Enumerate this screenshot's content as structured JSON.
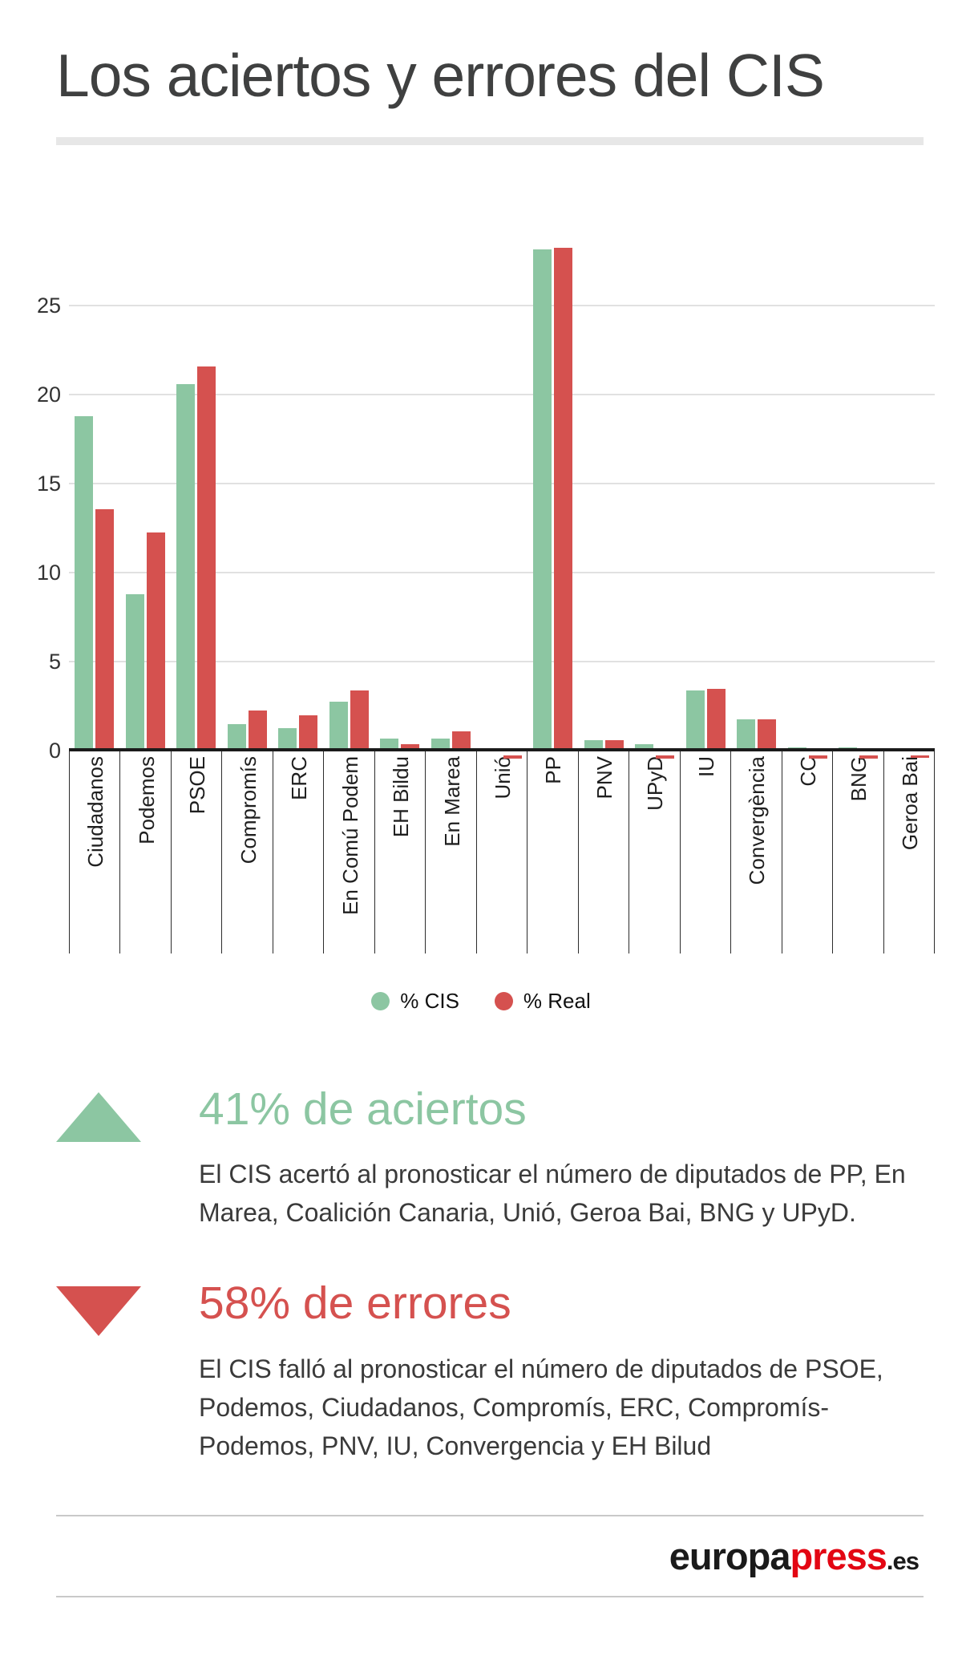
{
  "header": {
    "title": "Los aciertos y errores del CIS"
  },
  "chart_data": {
    "type": "bar",
    "title": "Los aciertos y errores del CIS",
    "categories": [
      "Ciudadanos",
      "Podemos",
      "PSOE",
      "Compromís",
      "ERC",
      "En Comú Podem",
      "EH Bildu",
      "En Marea",
      "Unió",
      "PP",
      "PNV",
      "UPyD",
      "IU",
      "Convergència",
      "CC",
      "BNG",
      "Geroa Bai"
    ],
    "series": [
      {
        "name": "% CIS",
        "color": "#8cc6a2",
        "values": [
          18.8,
          8.8,
          20.6,
          1.5,
          1.3,
          2.8,
          0.7,
          0.7,
          0,
          28.2,
          0.6,
          0.4,
          3.4,
          1.8,
          0.2,
          0.2,
          0
        ]
      },
      {
        "name": "% Real",
        "color": "#d5514f",
        "values": [
          13.6,
          12.3,
          21.6,
          2.3,
          2.0,
          3.4,
          0.4,
          1.1,
          -0.2,
          28.3,
          0.6,
          -0.2,
          3.5,
          1.8,
          -0.2,
          -0.2,
          -0.15
        ]
      }
    ],
    "yticks": [
      0,
      5,
      10,
      15,
      20,
      25
    ],
    "ylim": [
      -0.5,
      29.5
    ],
    "xlabel": "",
    "ylabel": "",
    "grid": true,
    "legend_position": "bottom"
  },
  "sections": {
    "aciertos": {
      "icon": "triangle-up",
      "color": "#8cc6a2",
      "heading": "41% de aciertos",
      "body": "El CIS acertó al pronosticar el número de diputados de PP, En Marea, Coalición Canaria, Unió, Geroa Bai, BNG y UPyD."
    },
    "errores": {
      "icon": "triangle-down",
      "color": "#d5514f",
      "heading": "58% de errores",
      "body": "El CIS falló al pronosticar el número de diputados de PSOE, Podemos, Ciudadanos, Compromís, ERC, Compromís-Podemos, PNV, IU, Convergencia y EH Bilud"
    }
  },
  "footer": {
    "brand_black": "europa",
    "brand_red": "press",
    "brand_suffix": ".es"
  }
}
